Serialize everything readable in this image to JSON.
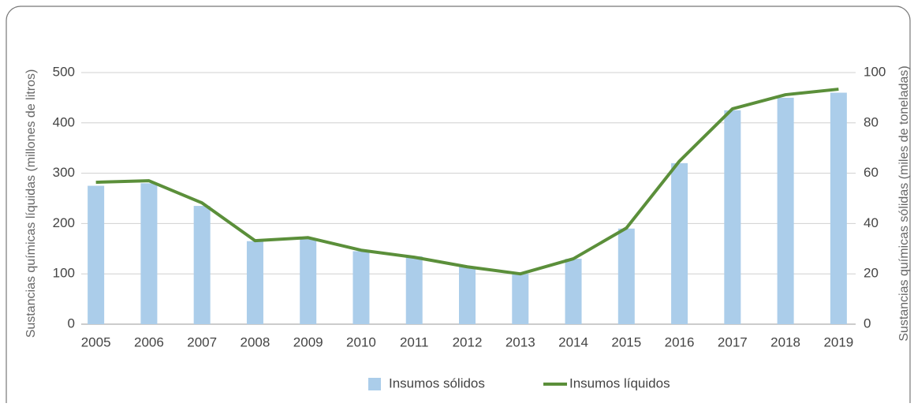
{
  "chart_data": {
    "type": "bar",
    "y_label": "Sustancias químicas líquidas (millones de litros)",
    "y2_label": "Sustancias químicas sólidas (miles de toneladas)",
    "categories": [
      "2005",
      "2006",
      "2007",
      "2008",
      "2009",
      "2010",
      "2011",
      "2012",
      "2013",
      "2014",
      "2015",
      "2016",
      "2017",
      "2018",
      "2019"
    ],
    "series": [
      {
        "name": "Insumos sólidos",
        "type": "bar",
        "axis": "y2",
        "color": "#abcdea",
        "values": [
          55,
          56,
          47,
          33,
          34,
          29,
          27,
          23,
          20,
          26,
          38,
          64,
          85,
          90,
          92
        ]
      },
      {
        "name": "Insumos líquidos",
        "type": "line",
        "axis": "y",
        "color": "#5b8f3a",
        "values": [
          282,
          285,
          241,
          166,
          172,
          147,
          133,
          114,
          100,
          130,
          191,
          324,
          428,
          456,
          467
        ]
      }
    ],
    "ylim": [
      0,
      500
    ],
    "yticks": [
      0,
      100,
      200,
      300,
      400,
      500
    ],
    "y2lim": [
      0,
      100
    ],
    "y2ticks": [
      0,
      20,
      40,
      60,
      80,
      100
    ],
    "grid": true,
    "legend": "bottom"
  }
}
